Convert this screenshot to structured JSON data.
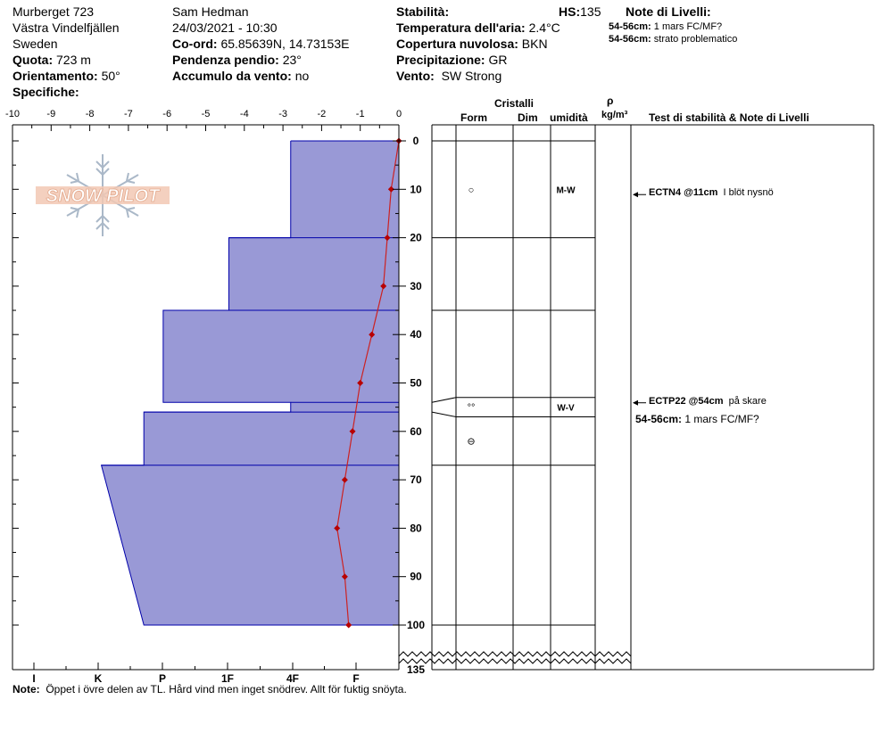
{
  "header": {
    "location": "Murberget 723",
    "region": "Västra Vindelfjällen",
    "country": "Sweden",
    "elevation_label": "Quota:",
    "elevation": "723 m",
    "aspect_label": "Orientamento:",
    "aspect": "50°",
    "specifics_label": "Specifiche:",
    "observer": "Sam Hedman",
    "datetime": "24/03/2021 - 10:30",
    "coords_label": "Co-ord:",
    "coords": "65.85639N, 14.73153E",
    "slope_label": "Pendenza pendio:",
    "slope": "23°",
    "wind_loading_label": "Accumulo da vento:",
    "wind_loading": "no",
    "stability_label": "Stabilità:",
    "air_temp_label": "Temperatura dell'aria:",
    "air_temp": "2.4°C",
    "sky_label": "Copertura nuvolosa:",
    "sky": "BKN",
    "precip_label": "Precipitazione:",
    "precip": "GR",
    "wind_label": "Vento:",
    "wind": "SW Strong",
    "hs_label": "HS:",
    "hs": "135",
    "layer_notes_title": "Note di Livelli:",
    "layer_notes": [
      {
        "range": "54-56cm:",
        "text": "1 mars FC/MF?"
      },
      {
        "range": "54-56cm:",
        "text": "strato problematico"
      }
    ]
  },
  "logo_text": "SNOW PILOT",
  "columns": {
    "crystals": "Cristalli",
    "form": "Form",
    "size": "Dim",
    "moisture": "umidità",
    "rho": "ρ",
    "rho_unit": "kg/m³",
    "tests": "Test di stabilità & Note di Livelli"
  },
  "chart_data": {
    "type": "area",
    "temp_axis": {
      "range": [
        -10,
        0
      ],
      "ticks": [
        "-10",
        "-9",
        "-8",
        "-7",
        "-6",
        "-5",
        "-4",
        "-3",
        "-2",
        "-1",
        "0"
      ]
    },
    "hardness_axis": {
      "ticks": [
        "I",
        "K",
        "P",
        "1F",
        "4F",
        "F"
      ]
    },
    "depth_axis": {
      "ticks": [
        "0",
        "10",
        "20",
        "30",
        "40",
        "50",
        "60",
        "70",
        "80",
        "90",
        "100"
      ],
      "bottom_label": "135"
    },
    "temperature_profile": [
      {
        "depth": 0,
        "temp": 0
      },
      {
        "depth": 10,
        "temp": -0.2
      },
      {
        "depth": 20,
        "temp": -0.3
      },
      {
        "depth": 30,
        "temp": -0.4
      },
      {
        "depth": 40,
        "temp": -0.7
      },
      {
        "depth": 50,
        "temp": -1.0
      },
      {
        "depth": 60,
        "temp": -1.2
      },
      {
        "depth": 70,
        "temp": -1.4
      },
      {
        "depth": 80,
        "temp": -1.6
      },
      {
        "depth": 90,
        "temp": -1.4
      },
      {
        "depth": 100,
        "temp": -1.3
      }
    ],
    "hardness_profile": [
      {
        "top": 0,
        "bottom": 20,
        "hardness_top": -2.8,
        "hardness_bottom": -2.8
      },
      {
        "top": 20,
        "bottom": 35,
        "hardness_top": -4.4,
        "hardness_bottom": -4.4
      },
      {
        "top": 35,
        "bottom": 54,
        "hardness_top": -6.1,
        "hardness_bottom": -6.1
      },
      {
        "top": 54,
        "bottom": 56,
        "hardness_top": -2.8,
        "hardness_bottom": -2.8
      },
      {
        "top": 56,
        "bottom": 67,
        "hardness_top": -6.6,
        "hardness_bottom": -6.6
      },
      {
        "top": 67,
        "bottom": 100,
        "hardness_top": -7.7,
        "hardness_bottom": -6.6
      }
    ],
    "layers": [
      {
        "top": 0,
        "bottom": 20,
        "form": "○",
        "moisture": "M-W",
        "label_depth": 10
      },
      {
        "top": 20,
        "bottom": 35,
        "form": "",
        "moisture": "",
        "label_depth": 27
      },
      {
        "top": 35,
        "bottom": 54,
        "form": "",
        "moisture": "",
        "label_depth": 44
      },
      {
        "top": 54,
        "bottom": 56,
        "form": "°°",
        "moisture": "W-V",
        "label_depth": 55
      },
      {
        "top": 56,
        "bottom": 67,
        "form": "⊖",
        "moisture": "",
        "label_depth": 62
      },
      {
        "top": 67,
        "bottom": 100,
        "form": "",
        "moisture": "",
        "label_depth": 83
      }
    ],
    "tests": [
      {
        "depth": 11,
        "code": "ECTN4 @11cm",
        "note": "I blöt nysnö"
      },
      {
        "depth": 54,
        "code": "ECTP22 @54cm",
        "note": "på skare"
      }
    ],
    "test_layer_note": {
      "range": "54-56cm:",
      "text": "1 mars FC/MF?"
    }
  },
  "note_label": "Note:",
  "note_text": "Öppet i övre delen av TL. Hård vind men inget snödrev. Allt för fuktig snöyta."
}
